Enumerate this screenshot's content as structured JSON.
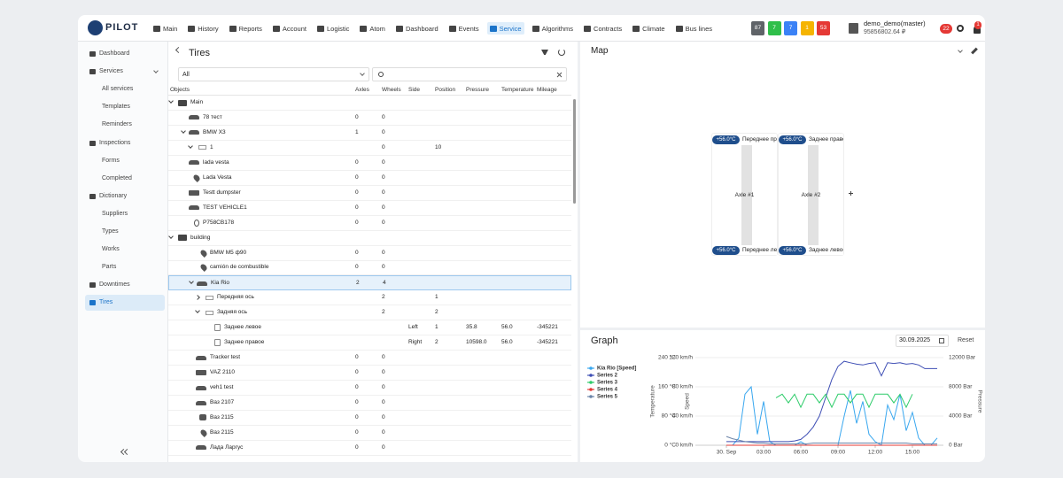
{
  "header": {
    "logo": "PILOT",
    "nav": [
      "Main",
      "History",
      "Reports",
      "Account",
      "Logistic",
      "Atom",
      "Dashboard",
      "Events",
      "Service",
      "Algorithms",
      "Contracts",
      "Climate",
      "Bus lines"
    ],
    "active_nav": "Service",
    "badges": [
      {
        "label": "87",
        "color": "#5f6368"
      },
      {
        "label": "7",
        "color": "#2fbf4a"
      },
      {
        "label": "7",
        "color": "#3b82f6"
      },
      {
        "label": "1",
        "color": "#f5b400"
      },
      {
        "label": "53",
        "color": "#e53935"
      }
    ],
    "user": {
      "name": "demo_demo(master)",
      "balance": "95856802.64 ₽"
    },
    "notifications": "22",
    "alerts": "1"
  },
  "sidebar": {
    "items": [
      {
        "label": "Dashboard",
        "sub": false
      },
      {
        "label": "Services",
        "sub": false,
        "toggle": true
      },
      {
        "label": "All services",
        "sub": true
      },
      {
        "label": "Templates",
        "sub": true
      },
      {
        "label": "Reminders",
        "sub": true
      },
      {
        "label": "Inspections",
        "sub": false
      },
      {
        "label": "Forms",
        "sub": true
      },
      {
        "label": "Completed",
        "sub": true
      },
      {
        "label": "Dictionary",
        "sub": false
      },
      {
        "label": "Suppliers",
        "sub": true
      },
      {
        "label": "Types",
        "sub": true
      },
      {
        "label": "Works",
        "sub": true
      },
      {
        "label": "Parts",
        "sub": true
      },
      {
        "label": "Downtimes",
        "sub": false
      },
      {
        "label": "Tires",
        "sub": false,
        "active": true
      }
    ]
  },
  "tires": {
    "title": "Tires",
    "filter": "All",
    "columns": [
      "Objects",
      "Axles",
      "Wheels",
      "Side",
      "Position",
      "Pressure",
      "Temperature",
      "Mileage"
    ],
    "rows": [
      {
        "name": "Main",
        "depth": 0,
        "icon": "folder",
        "toggle": "open",
        "cells": [
          null,
          null,
          null,
          null,
          null,
          null,
          null
        ]
      },
      {
        "name": "78 тест",
        "depth": 1,
        "icon": "car",
        "cells": [
          "0",
          "0",
          null,
          null,
          null,
          null,
          null
        ]
      },
      {
        "name": "BMW X3",
        "depth": 1,
        "icon": "car",
        "toggle": "open",
        "cells": [
          "1",
          "0",
          null,
          null,
          null,
          null,
          null
        ]
      },
      {
        "name": "1",
        "depth": 2,
        "icon": "axle",
        "toggle": "open",
        "cells": [
          null,
          "0",
          null,
          "10",
          null,
          null,
          null
        ]
      },
      {
        "name": "lada vesta",
        "depth": 1,
        "icon": "car",
        "cells": [
          "0",
          "0",
          null,
          null,
          null,
          null,
          null
        ]
      },
      {
        "name": "Lada Vesta",
        "depth": 1,
        "icon": "pin",
        "cells": [
          "0",
          "0",
          null,
          null,
          null,
          null,
          null
        ]
      },
      {
        "name": "Testt dumpster",
        "depth": 1,
        "icon": "truck",
        "cells": [
          "0",
          "0",
          null,
          null,
          null,
          null,
          null
        ]
      },
      {
        "name": "TEST VEHICLE1",
        "depth": 1,
        "icon": "car",
        "cells": [
          "0",
          "0",
          null,
          null,
          null,
          null,
          null
        ]
      },
      {
        "name": "P758CB178",
        "depth": 1,
        "icon": "tracker",
        "cells": [
          "0",
          "0",
          null,
          null,
          null,
          null,
          null
        ]
      },
      {
        "name": "building",
        "depth": 0,
        "icon": "folder",
        "toggle": "open",
        "cells": [
          null,
          null,
          null,
          null,
          null,
          null,
          null
        ]
      },
      {
        "name": "BMW M5 ф90",
        "depth": 2,
        "icon": "pin",
        "cells": [
          "0",
          "0",
          null,
          null,
          null,
          null,
          null
        ]
      },
      {
        "name": "camión de combustible",
        "depth": 2,
        "icon": "pin",
        "cells": [
          "0",
          "0",
          null,
          null,
          null,
          null,
          null
        ]
      },
      {
        "name": "Kia Rio",
        "depth": 2,
        "icon": "car",
        "toggle": "open",
        "selected": true,
        "cells": [
          "2",
          "4",
          null,
          null,
          null,
          null,
          null
        ]
      },
      {
        "name": "Передняя ось",
        "depth": 3,
        "icon": "axle",
        "toggle": "closed",
        "cells": [
          null,
          "2",
          null,
          "1",
          null,
          null,
          null
        ]
      },
      {
        "name": "Задняя ось",
        "depth": 3,
        "icon": "axle",
        "toggle": "open",
        "cells": [
          null,
          "2",
          null,
          "2",
          null,
          null,
          null
        ]
      },
      {
        "name": "Заднее левое",
        "depth": 4,
        "icon": "wheel",
        "cells": [
          null,
          null,
          "Left",
          "1",
          "35.8",
          "56.0",
          "-345221"
        ]
      },
      {
        "name": "Заднее правое",
        "depth": 4,
        "icon": "wheel",
        "cells": [
          null,
          null,
          "Right",
          "2",
          "10598.0",
          "56.0",
          "-345221"
        ]
      },
      {
        "name": "Tracker test",
        "depth": 2,
        "icon": "car",
        "cells": [
          "0",
          "0",
          null,
          null,
          null,
          null,
          null
        ]
      },
      {
        "name": "VAZ 2110",
        "depth": 2,
        "icon": "truck",
        "cells": [
          "0",
          "0",
          null,
          null,
          null,
          null,
          null
        ]
      },
      {
        "name": "veh1 test",
        "depth": 2,
        "icon": "car",
        "cells": [
          "0",
          "0",
          null,
          null,
          null,
          null,
          null
        ]
      },
      {
        "name": "Ваз 2107",
        "depth": 2,
        "icon": "car",
        "cells": [
          "0",
          "0",
          null,
          null,
          null,
          null,
          null
        ]
      },
      {
        "name": "Ваз 2115",
        "depth": 2,
        "icon": "person",
        "cells": [
          "0",
          "0",
          null,
          null,
          null,
          null,
          null
        ]
      },
      {
        "name": "Ваз 2115",
        "depth": 2,
        "icon": "pin",
        "cells": [
          "0",
          "0",
          null,
          null,
          null,
          null,
          null
        ]
      },
      {
        "name": "Лада Ларгус",
        "depth": 2,
        "icon": "car",
        "cells": [
          "0",
          "0",
          null,
          null,
          null,
          null,
          null
        ]
      }
    ]
  },
  "map": {
    "title": "Map",
    "axles": [
      {
        "label": "Axle #1",
        "top": {
          "temp": "+56.0°C",
          "name": "Переднее правое"
        },
        "bottom": {
          "temp": "+56.0°C",
          "name": "Переднее левое"
        }
      },
      {
        "label": "Axle #2",
        "top": {
          "temp": "+56.0°C",
          "name": "Заднее правое"
        },
        "bottom": {
          "temp": "+56.0°C",
          "name": "Заднее левое"
        }
      }
    ]
  },
  "graph": {
    "title": "Graph",
    "date": "30.09.2025",
    "reset": "Reset"
  },
  "chart_data": {
    "type": "line",
    "legend": "top-left",
    "grid": true,
    "x": [
      0,
      0.5,
      1,
      1.5,
      2,
      2.5,
      3,
      3.5,
      4,
      4.5,
      5,
      5.5,
      6,
      6.5,
      7,
      7.5,
      8,
      8.5,
      9,
      9.5,
      10,
      10.5,
      11,
      11.5,
      12,
      12.5,
      13,
      13.5,
      14,
      14.5,
      15,
      15.5,
      16,
      16.5,
      17
    ],
    "xlim": [
      -2.5,
      17.5
    ],
    "xticks": [
      {
        "value": 0,
        "label": "30. Sep"
      },
      {
        "value": 3,
        "label": "03:00"
      },
      {
        "value": 6,
        "label": "06:00"
      },
      {
        "value": 9,
        "label": "09:00"
      },
      {
        "value": 12,
        "label": "12:00"
      },
      {
        "value": 15,
        "label": "15:00"
      }
    ],
    "y_axes": {
      "temperature": {
        "label": "Temperature",
        "side": "left",
        "ylim": [
          0,
          240
        ],
        "yticks": [
          {
            "value": 0,
            "label": "0 °C"
          },
          {
            "value": 80,
            "label": "80 °C"
          },
          {
            "value": 160,
            "label": "160 °C"
          },
          {
            "value": 240,
            "label": "240 °C"
          }
        ]
      },
      "speed": {
        "label": "Speed",
        "side": "left",
        "ylim": [
          0,
          120
        ],
        "yticks": [
          {
            "value": 0,
            "label": "0 km/h"
          },
          {
            "value": 40,
            "label": "40 km/h"
          },
          {
            "value": 80,
            "label": "80 km/h"
          },
          {
            "value": 120,
            "label": "120 km/h"
          }
        ]
      },
      "pressure": {
        "label": "Pressure",
        "side": "right",
        "ylim": [
          0,
          12000
        ],
        "yticks": [
          {
            "value": 0,
            "label": "0 Bar"
          },
          {
            "value": 4000,
            "label": "4000 Bar"
          },
          {
            "value": 8000,
            "label": "8000 Bar"
          },
          {
            "value": 12000,
            "label": "12000 Bar"
          }
        ]
      }
    },
    "series": [
      {
        "name": "Kia Rio [Speed]",
        "color": "#39a7ef",
        "axis": "speed",
        "values": [
          0,
          0,
          10,
          70,
          80,
          15,
          60,
          5,
          0,
          0,
          0,
          0,
          5,
          0,
          0,
          0,
          0,
          0,
          0,
          40,
          75,
          30,
          60,
          15,
          5,
          0,
          55,
          35,
          70,
          20,
          45,
          10,
          0,
          0,
          10
        ]
      },
      {
        "name": "Series 2",
        "color": "#3f4fb5",
        "axis": "pressure",
        "values": [
          500,
          500,
          500,
          500,
          500,
          500,
          500,
          500,
          500,
          500,
          500,
          600,
          800,
          1500,
          2500,
          4000,
          6500,
          9000,
          10800,
          11500,
          11300,
          11100,
          11000,
          11200,
          11300,
          9500,
          11300,
          11200,
          11300,
          11100,
          11200,
          11000,
          10500,
          10500,
          10500
        ]
      },
      {
        "name": "Series 3",
        "color": "#2ecc6a",
        "axis": "speed",
        "values": [
          null,
          null,
          null,
          null,
          null,
          null,
          null,
          null,
          65,
          70,
          58,
          70,
          52,
          70,
          70,
          58,
          70,
          52,
          70,
          70,
          58,
          70,
          70,
          52,
          70,
          70,
          70,
          58,
          70,
          52,
          70,
          null,
          null,
          null,
          null
        ]
      },
      {
        "name": "Series 4",
        "color": "#e53935",
        "axis": "temperature",
        "values": [
          0,
          0,
          0,
          0,
          0,
          0,
          0,
          0,
          0,
          0,
          0,
          0,
          0,
          0,
          0,
          0,
          0,
          0,
          0,
          0,
          0,
          0,
          0,
          0,
          0,
          0,
          0,
          0,
          0,
          0,
          0,
          0,
          0,
          0,
          0
        ]
      },
      {
        "name": "Series 5",
        "color": "#6b84a8",
        "axis": "speed",
        "values": [
          12,
          9,
          7,
          5,
          4,
          3,
          3,
          2,
          2,
          2,
          2,
          2,
          2,
          2,
          3,
          3,
          3,
          3,
          3,
          3,
          3,
          3,
          3,
          3,
          3,
          3,
          3,
          3,
          3,
          3,
          2,
          2,
          2,
          2,
          2
        ]
      }
    ]
  }
}
